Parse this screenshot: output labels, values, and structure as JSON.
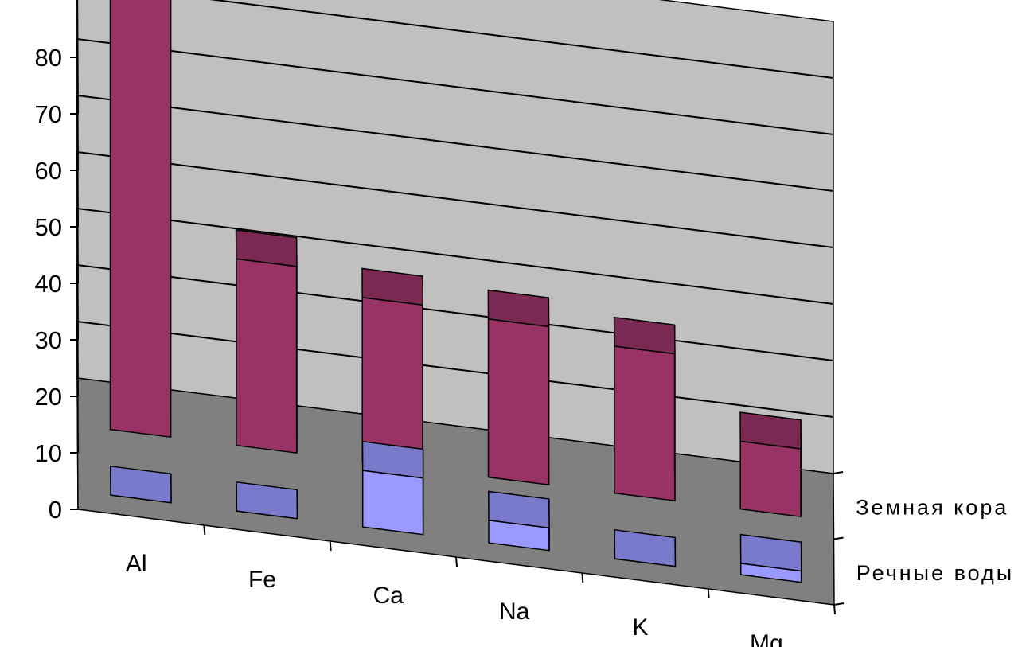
{
  "chart_data": {
    "type": "bar",
    "title": "",
    "xlabel": "",
    "ylabel": "",
    "ylim": [
      0,
      80
    ],
    "yticks": [
      0,
      10,
      20,
      30,
      40,
      50,
      60,
      70,
      80
    ],
    "categories": [
      "Al",
      "Fe",
      "Ca",
      "Na",
      "K",
      "Mg"
    ],
    "series": [
      {
        "name": "Речные воды",
        "values": [
          0,
          0,
          10,
          4,
          0,
          2
        ],
        "color": "#9999ff"
      },
      {
        "name": "Земная кора",
        "values": [
          80,
          33,
          29,
          28,
          26,
          12
        ],
        "color": "#993366"
      }
    ],
    "grid": true,
    "legend": "depth axis labels on the right",
    "wall_color": "#c0c0c0",
    "floor_color": "#808080"
  }
}
